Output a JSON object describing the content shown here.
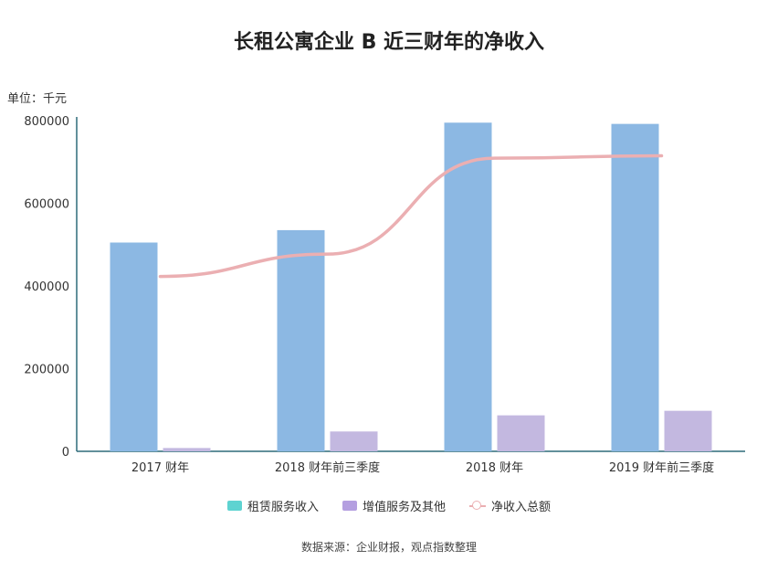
{
  "chart_data": {
    "type": "bar",
    "title": "长租公寓企业 B 近三财年的净收入",
    "unit_label": "单位：千元",
    "categories": [
      "2017 财年",
      "2018 财年前三季度",
      "2018 财年",
      "2019 财年前三季度"
    ],
    "ylim": [
      0,
      800000
    ],
    "yticks": [
      "800000",
      "600000",
      "400000",
      "200000",
      "0"
    ],
    "series": [
      {
        "name": "租赁服务收入",
        "kind": "bar",
        "color": "#8CB8E3",
        "legend_color": "#5ED3D1",
        "values": [
          505000,
          535000,
          795000,
          792000
        ]
      },
      {
        "name": "增值服务及其他",
        "kind": "bar",
        "color": "#C3B8E0",
        "legend_color": "#B49FE0",
        "values": [
          8000,
          48000,
          87000,
          98000
        ]
      },
      {
        "name": "净收入总额",
        "kind": "line",
        "color": "#EBAFB2",
        "legend_color": "#EBAFB2",
        "values": [
          423000,
          477000,
          709000,
          715000
        ]
      }
    ],
    "legend_position": "bottom",
    "grid": false,
    "source": "数据来源：企业财报，观点指数整理"
  }
}
